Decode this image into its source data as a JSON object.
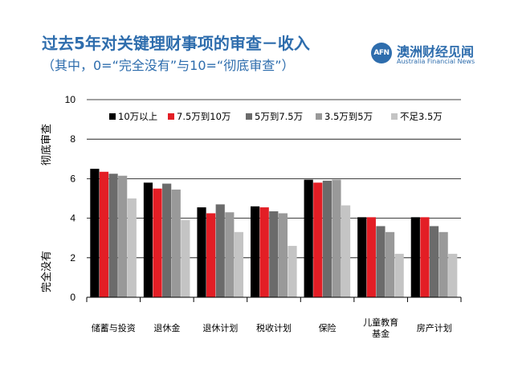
{
  "header": {
    "title": "过去5年对关键理财事项的审查－收入",
    "subtitle": "（其中，0=“完全没有”与10=“彻底审查”）"
  },
  "logo": {
    "badge": "AFN",
    "name_cn": "澳洲财经见闻",
    "name_en": "Australia Financial News",
    "color": "#2e6dad"
  },
  "chart_data": {
    "type": "bar",
    "ylabel_top": "彻底审查",
    "ylabel_bottom": "完全没有",
    "ylim": [
      0,
      10
    ],
    "yticks": [
      0,
      2,
      4,
      6,
      8,
      10
    ],
    "grid": true,
    "legend_position": "top-right",
    "categories": [
      [
        "储蓄与投资"
      ],
      [
        "退休金"
      ],
      [
        "退休计划"
      ],
      [
        "税收计划"
      ],
      [
        "保险"
      ],
      [
        "儿童教育",
        "基金"
      ],
      [
        "房产计划"
      ]
    ],
    "series": [
      {
        "name": "10万以上",
        "color": "#000000",
        "values": [
          6.5,
          5.8,
          4.55,
          4.6,
          5.95,
          4.05,
          4.05
        ]
      },
      {
        "name": "7.5万到10万",
        "color": "#e31e25",
        "values": [
          6.35,
          5.5,
          4.25,
          4.55,
          5.8,
          4.05,
          4.05
        ]
      },
      {
        "name": "5万到7.5万",
        "color": "#6b6b6b",
        "values": [
          6.25,
          5.75,
          4.7,
          4.35,
          5.9,
          3.6,
          3.6
        ]
      },
      {
        "name": "3.5万到5万",
        "color": "#999999",
        "values": [
          6.15,
          5.45,
          4.3,
          4.25,
          5.95,
          3.3,
          3.3
        ]
      },
      {
        "name": "不足3.5万",
        "color": "#c4c4c4",
        "values": [
          5.0,
          3.9,
          3.3,
          2.6,
          4.65,
          2.2,
          2.2
        ]
      }
    ]
  }
}
